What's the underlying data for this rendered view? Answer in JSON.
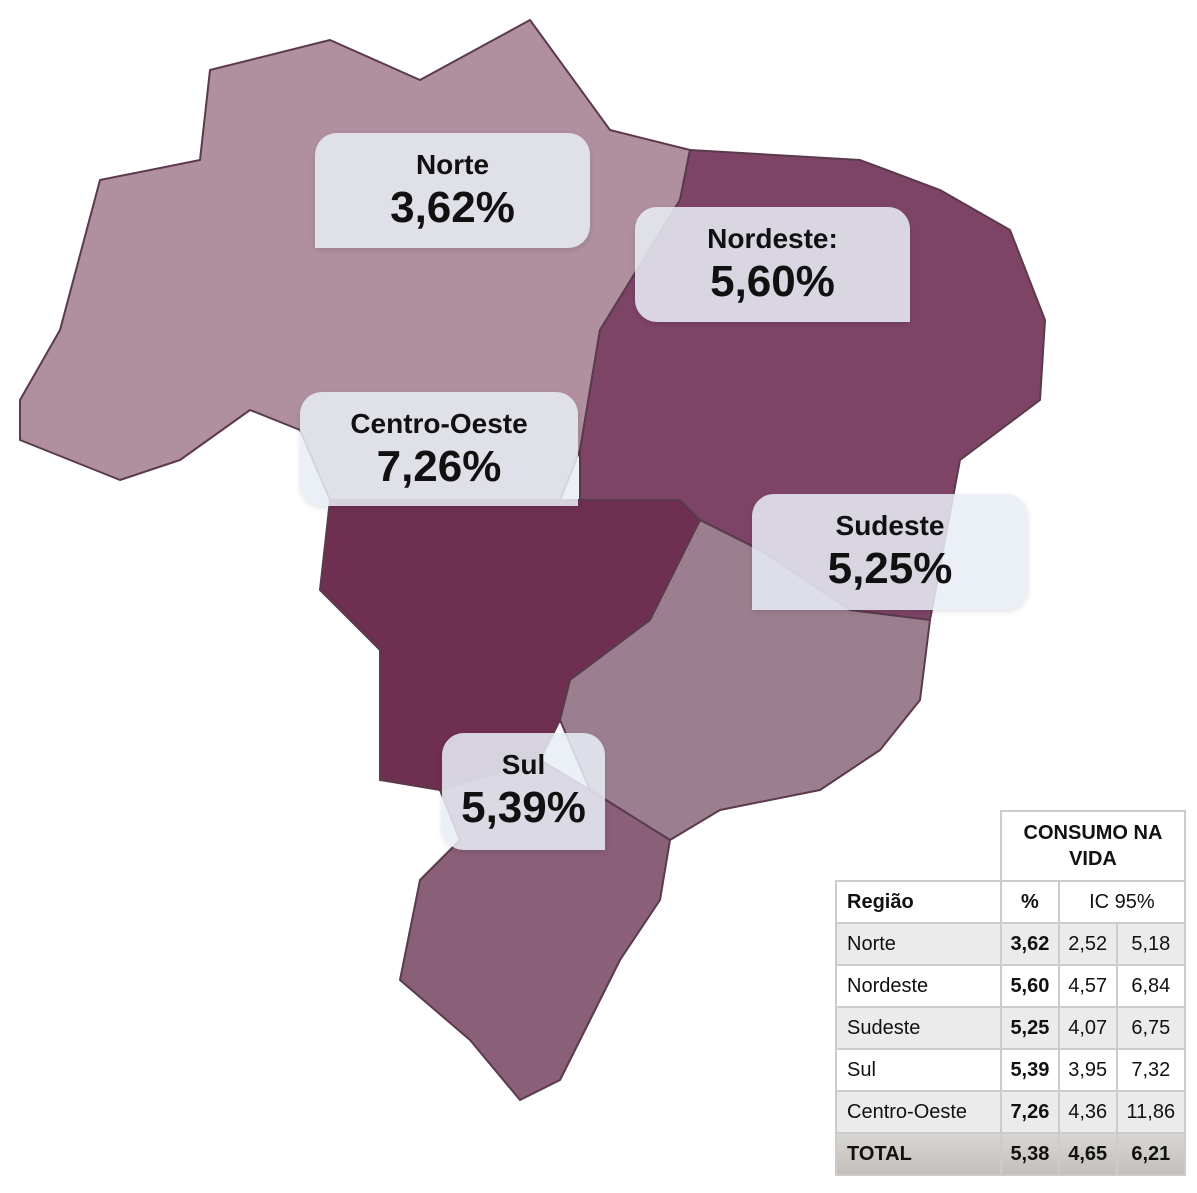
{
  "regions": [
    {
      "name": "Norte",
      "value": "3,62%"
    },
    {
      "name": "Nordeste:",
      "value": "5,60%"
    },
    {
      "name": "Centro-Oeste",
      "value": "7,26%"
    },
    {
      "name": "Sudeste",
      "value": "5,25%"
    },
    {
      "name": "Sul",
      "value": "5,39%"
    }
  ],
  "table": {
    "group_header": "CONSUMO NA VIDA",
    "columns": [
      "Região",
      "%",
      "IC 95%"
    ],
    "rows": [
      [
        "Norte",
        "3,62",
        "2,52",
        "5,18"
      ],
      [
        "Nordeste",
        "5,60",
        "4,57",
        "6,84"
      ],
      [
        "Sudeste",
        "5,25",
        "4,07",
        "6,75"
      ],
      [
        "Sul",
        "5,39",
        "3,95",
        "7,32"
      ],
      [
        "Centro-Oeste",
        "7,26",
        "4,36",
        "11,86"
      ]
    ],
    "total": [
      "TOTAL",
      "5,38",
      "4,65",
      "6,21"
    ]
  }
}
